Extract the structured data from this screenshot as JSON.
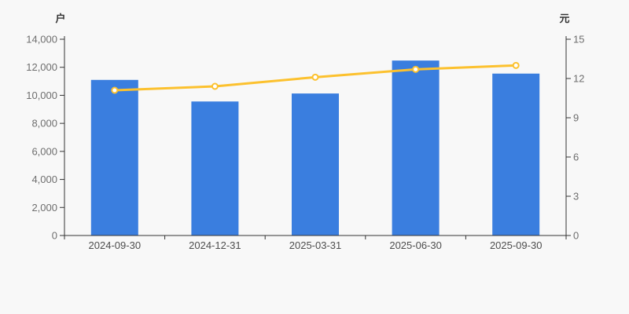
{
  "chart_data": {
    "type": "bar",
    "categories": [
      "2024-09-30",
      "2024-12-31",
      "2025-03-31",
      "2025-06-30",
      "2025-09-30"
    ],
    "series": [
      {
        "name": "households-bar",
        "type": "bar",
        "axis": "left",
        "values": [
          11100,
          9560,
          10130,
          12480,
          11550
        ]
      },
      {
        "name": "per-holder-line",
        "type": "line",
        "axis": "right",
        "values": [
          11.1,
          11.4,
          12.1,
          12.7,
          13.0
        ]
      }
    ],
    "left_axis": {
      "title": "户",
      "min": 0,
      "max": 14000,
      "tick_labels": [
        "0",
        "2,000",
        "4,000",
        "6,000",
        "8,000",
        "10,000",
        "12,000",
        "14,000"
      ]
    },
    "right_axis": {
      "title": "元",
      "min": 0,
      "max": 15,
      "tick_labels": [
        "0",
        "3",
        "6",
        "9",
        "12",
        "15"
      ]
    },
    "legend": "none",
    "grid": "off",
    "colors": {
      "background": "#f8f8f8",
      "axis_line": "#333333",
      "tick_label": "#6e6e6e",
      "date_label": "#4d4d4d",
      "bar": "#3a7edf",
      "line": "#fcc12e",
      "marker_fill": "#ffffff"
    }
  }
}
